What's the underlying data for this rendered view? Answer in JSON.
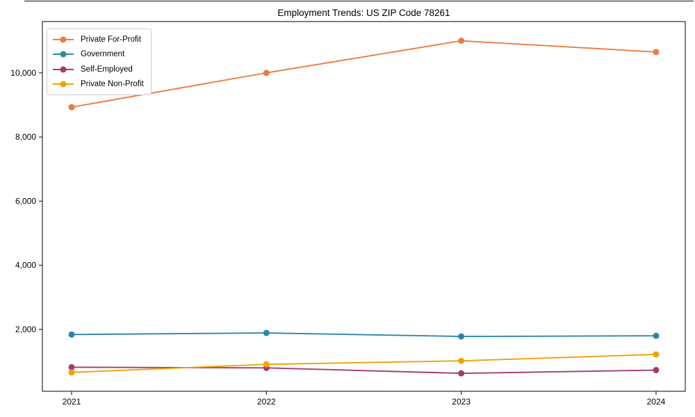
{
  "page": {
    "background": "#ffffff"
  },
  "chart_data": {
    "type": "line",
    "title": "Employment Trends: US ZIP Code 78261",
    "xlabel": "",
    "ylabel": "",
    "categories": [
      "2021",
      "2022",
      "2023",
      "2024"
    ],
    "x": [
      2021,
      2022,
      2023,
      2024
    ],
    "series": [
      {
        "id": "private-for-profit",
        "name": "Private For-Profit",
        "color": "#EC7B43",
        "values": [
          8930,
          10000,
          11000,
          10650
        ]
      },
      {
        "id": "government",
        "name": "Government",
        "color": "#2E86A8",
        "values": [
          1840,
          1890,
          1780,
          1800
        ]
      },
      {
        "id": "self-employed",
        "name": "Self-Employed",
        "color": "#A23B72",
        "values": [
          820,
          800,
          630,
          730
        ]
      },
      {
        "id": "private-non-profit",
        "name": "Private Non-Profit",
        "color": "#F2A104",
        "values": [
          660,
          910,
          1020,
          1220
        ]
      }
    ],
    "xlim": [
      2020.85,
      2024.15
    ],
    "ylim": [
      70,
      11600
    ],
    "yticks": {
      "values": [
        2000,
        4000,
        6000,
        8000,
        10000
      ],
      "labels": [
        "2,000",
        "4,000",
        "6,000",
        "8,000",
        "10,000"
      ]
    },
    "grid": false,
    "legend_position": "upper left",
    "axis_color": "#000000",
    "text_color": "#000000",
    "marker": "circle",
    "marker_size": 9,
    "line_width": 1.9
  }
}
